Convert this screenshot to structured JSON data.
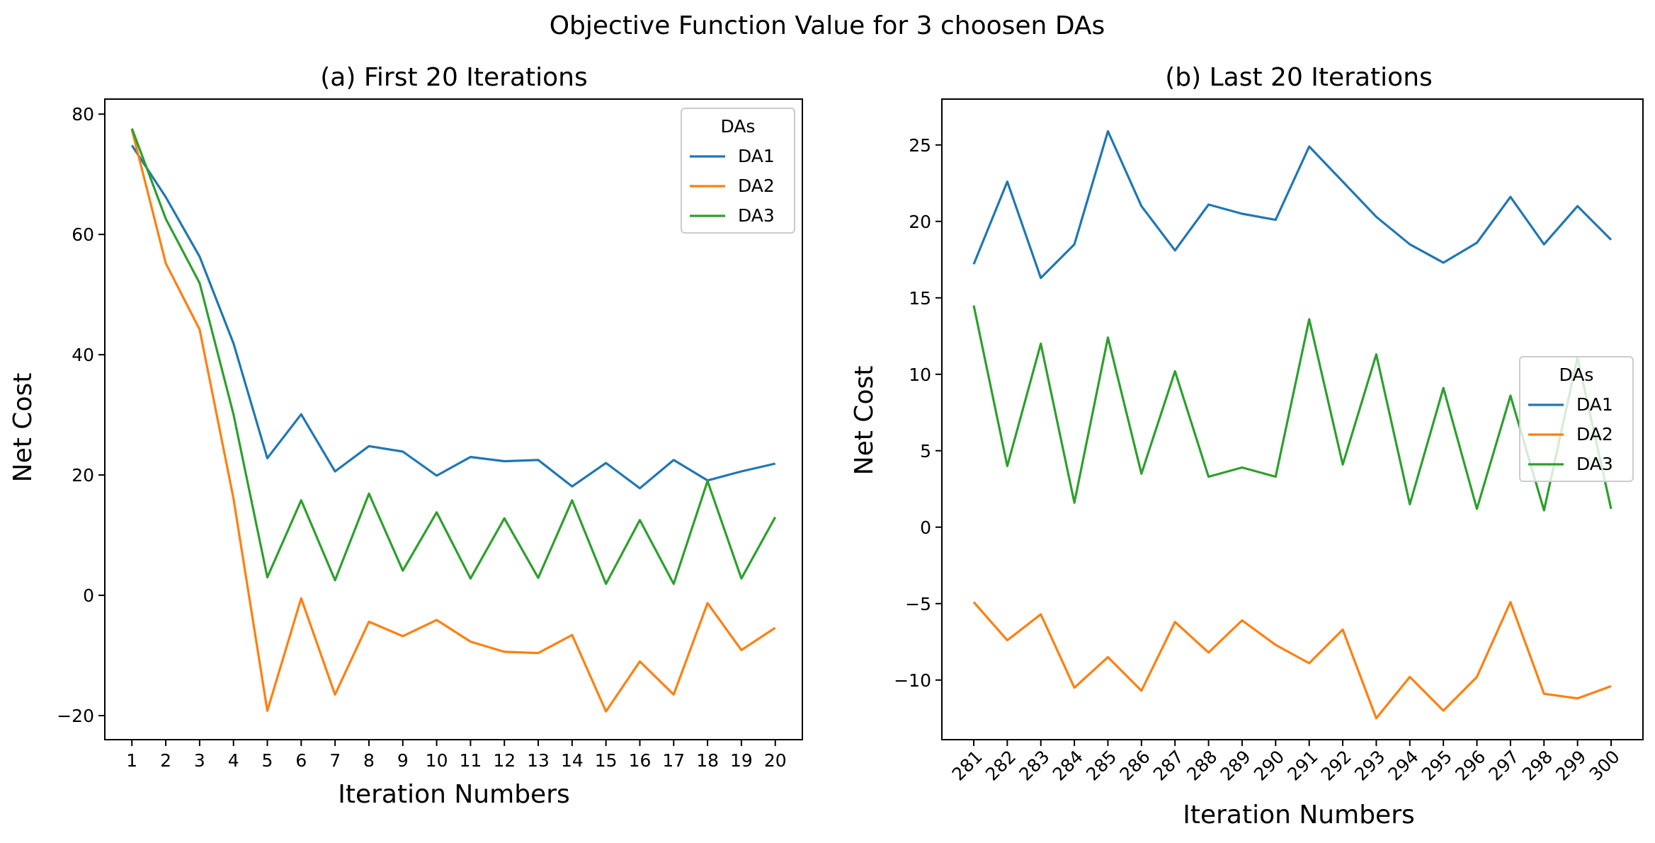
{
  "figure": {
    "title": "Objective Function Value for 3 choosen DAs"
  },
  "chart_data": [
    {
      "type": "line",
      "title": "(a) First 20 Iterations",
      "xlabel": "Iteration Numbers",
      "ylabel": "Net Cost",
      "x": [
        1,
        2,
        3,
        4,
        5,
        6,
        7,
        8,
        9,
        10,
        11,
        12,
        13,
        14,
        15,
        16,
        17,
        18,
        19,
        20
      ],
      "xlim": [
        0.2,
        20.8
      ],
      "ylim": [
        -24,
        82.5
      ],
      "yticks": [
        -20,
        0,
        20,
        40,
        60,
        80
      ],
      "ytick_labels": [
        "−20",
        "0",
        "20",
        "40",
        "60",
        "80"
      ],
      "xtick_labels": [
        "1",
        "2",
        "3",
        "4",
        "5",
        "6",
        "7",
        "8",
        "9",
        "10",
        "11",
        "12",
        "13",
        "14",
        "15",
        "16",
        "17",
        "18",
        "19",
        "20"
      ],
      "xtick_rotation": 0,
      "grid": false,
      "legend": {
        "title": "DAs",
        "position": "upper-right"
      },
      "series": [
        {
          "name": "DA1",
          "color": "#1f77b4",
          "values": [
            74.8,
            66.2,
            56.3,
            41.9,
            22.8,
            30.1,
            20.6,
            24.8,
            23.9,
            19.9,
            23.0,
            22.3,
            22.5,
            18.1,
            22.0,
            17.8,
            22.5,
            19.1,
            20.6,
            21.9
          ]
        },
        {
          "name": "DA2",
          "color": "#ff7f0e",
          "values": [
            77.4,
            55.2,
            44.2,
            16.1,
            -19.2,
            -0.5,
            -16.5,
            -4.4,
            -6.8,
            -4.1,
            -7.7,
            -9.4,
            -9.6,
            -6.6,
            -19.3,
            -11.0,
            -16.5,
            -1.3,
            -9.1,
            -5.4
          ]
        },
        {
          "name": "DA3",
          "color": "#2ca02c",
          "values": [
            77.6,
            62.6,
            51.9,
            30.1,
            3.0,
            15.8,
            2.5,
            16.9,
            4.1,
            13.8,
            2.8,
            12.8,
            2.9,
            15.8,
            1.9,
            12.5,
            1.9,
            19.0,
            2.8,
            13.0
          ]
        }
      ]
    },
    {
      "type": "line",
      "title": "(b) Last 20 Iterations",
      "xlabel": "Iteration Numbers",
      "ylabel": "Net Cost",
      "x": [
        281,
        282,
        283,
        284,
        285,
        286,
        287,
        288,
        289,
        290,
        291,
        292,
        293,
        294,
        295,
        296,
        297,
        298,
        299,
        300
      ],
      "xlim": [
        280.05,
        300.95
      ],
      "ylim": [
        -13.9,
        28.0
      ],
      "yticks": [
        -10,
        -5,
        0,
        5,
        10,
        15,
        20,
        25
      ],
      "ytick_labels": [
        "−10",
        "−5",
        "0",
        "5",
        "10",
        "15",
        "20",
        "25"
      ],
      "xtick_labels": [
        "281",
        "282",
        "283",
        "284",
        "285",
        "286",
        "287",
        "288",
        "289",
        "290",
        "291",
        "292",
        "293",
        "294",
        "295",
        "296",
        "297",
        "298",
        "299",
        "300"
      ],
      "xtick_rotation": -45,
      "grid": false,
      "legend": {
        "title": "DAs",
        "position": "center-right"
      },
      "series": [
        {
          "name": "DA1",
          "color": "#1f77b4",
          "values": [
            17.2,
            22.6,
            16.3,
            18.5,
            25.9,
            21.0,
            18.1,
            21.1,
            20.5,
            20.1,
            24.9,
            22.6,
            20.3,
            18.5,
            17.3,
            18.6,
            21.6,
            18.5,
            21.0,
            18.8
          ]
        },
        {
          "name": "DA2",
          "color": "#ff7f0e",
          "values": [
            -4.9,
            -7.4,
            -5.7,
            -10.5,
            -8.5,
            -10.7,
            -6.2,
            -8.2,
            -6.1,
            -7.7,
            -8.9,
            -6.7,
            -12.5,
            -9.8,
            -12.0,
            -9.8,
            -4.9,
            -10.9,
            -11.2,
            -10.4
          ]
        },
        {
          "name": "DA3",
          "color": "#2ca02c",
          "values": [
            14.5,
            4.0,
            12.0,
            1.6,
            12.4,
            3.5,
            10.2,
            3.3,
            3.9,
            3.3,
            13.6,
            4.1,
            11.3,
            1.5,
            9.1,
            1.2,
            8.6,
            1.1,
            11.1,
            1.2
          ]
        }
      ]
    }
  ]
}
